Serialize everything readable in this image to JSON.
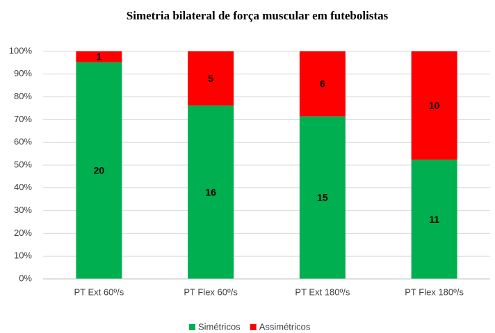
{
  "chart_data": {
    "type": "bar",
    "stacking": "percent",
    "title": "Simetria bilateral de força muscular em futebolistas",
    "categories": [
      "PT Ext 60º/s",
      "PT Flex 60º/s",
      "PT Ext 180º/s",
      "PT Flex 180º/s"
    ],
    "series": [
      {
        "name": "Simétricos",
        "color": "#00b050",
        "values": [
          20,
          16,
          15,
          11
        ]
      },
      {
        "name": "Assimétricos",
        "color": "#ff0000",
        "values": [
          1,
          5,
          6,
          10
        ]
      }
    ],
    "ylim": [
      0,
      100
    ],
    "yticks": [
      {
        "value": 0,
        "label": "0%"
      },
      {
        "value": 10,
        "label": "10%"
      },
      {
        "value": 20,
        "label": "20%"
      },
      {
        "value": 30,
        "label": "30%"
      },
      {
        "value": 40,
        "label": "40%"
      },
      {
        "value": 50,
        "label": "50%"
      },
      {
        "value": 60,
        "label": "60%"
      },
      {
        "value": 70,
        "label": "70%"
      },
      {
        "value": 80,
        "label": "80%"
      },
      {
        "value": 90,
        "label": "90%"
      },
      {
        "value": 100,
        "label": "100%"
      }
    ],
    "grid": true,
    "legend": "bottom"
  }
}
